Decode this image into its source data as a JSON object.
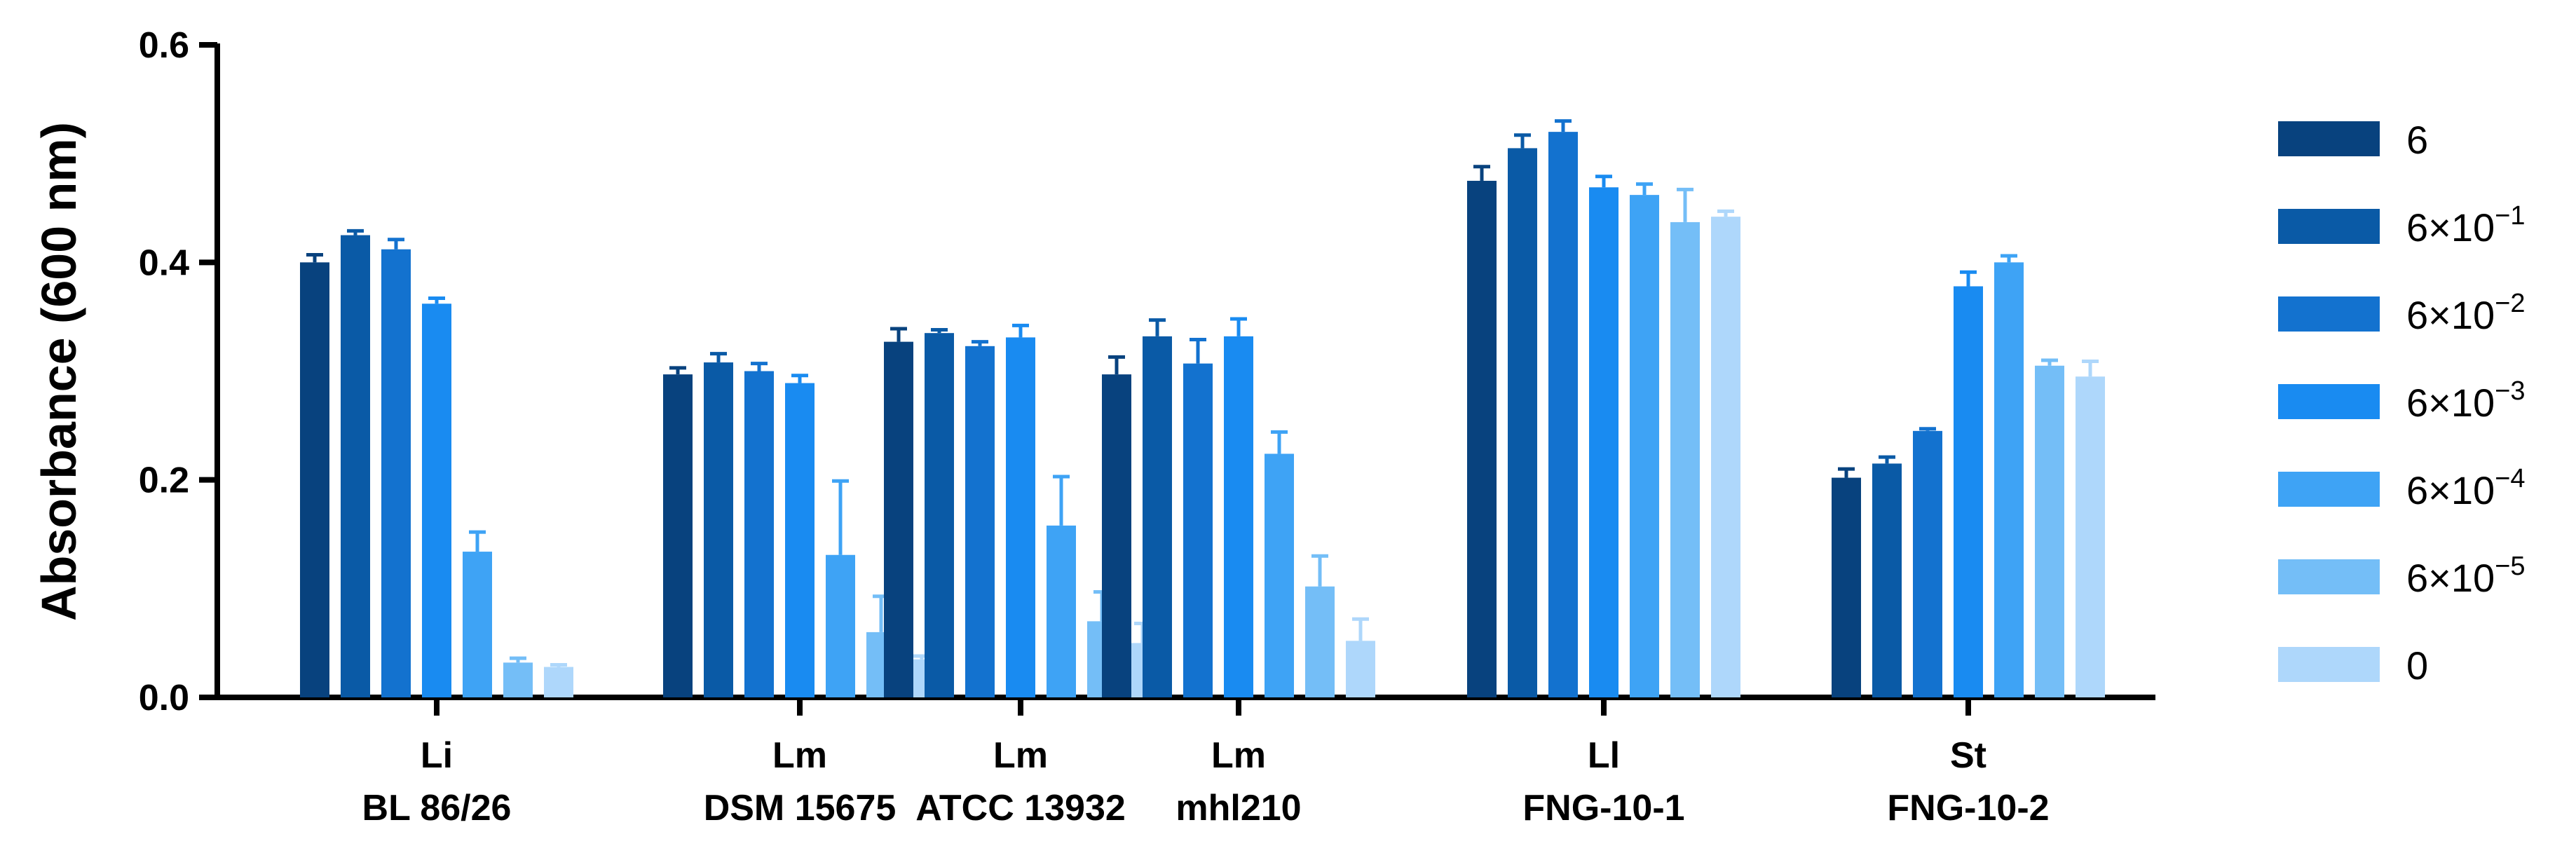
{
  "chart_data": {
    "type": "bar",
    "ylabel": "Absorbance (600 nm)",
    "ylim": [
      0,
      0.6
    ],
    "yticks": [
      "0.0",
      "0.2",
      "0.4",
      "0.6"
    ],
    "categories": [
      {
        "line1": "Li",
        "line2": "BL 86/26"
      },
      {
        "line1": "Lm",
        "line2": "DSM 15675"
      },
      {
        "line1": "Lm",
        "line2": "ATCC 13932"
      },
      {
        "line1": "Lm",
        "line2": "mhl210"
      },
      {
        "line1": "Ll",
        "line2": "FNG-10-1"
      },
      {
        "line1": "St",
        "line2": "FNG-10-2"
      }
    ],
    "series": [
      {
        "name": "6",
        "base": "6",
        "exp": "",
        "color": "#08427e",
        "values": [
          0.4,
          0.297,
          0.327,
          0.297,
          0.475,
          0.202
        ],
        "errors": [
          0.007,
          0.006,
          0.012,
          0.016,
          0.013,
          0.008
        ]
      },
      {
        "name": "6×10−1",
        "base": "6×10",
        "exp": "−1",
        "color": "#0a5aa6",
        "values": [
          0.425,
          0.308,
          0.335,
          0.332,
          0.505,
          0.215
        ],
        "errors": [
          0.004,
          0.008,
          0.003,
          0.015,
          0.012,
          0.006
        ]
      },
      {
        "name": "6×10−2",
        "base": "6×10",
        "exp": "−2",
        "color": "#1372cf",
        "values": [
          0.412,
          0.3,
          0.323,
          0.307,
          0.52,
          0.245
        ],
        "errors": [
          0.009,
          0.007,
          0.004,
          0.022,
          0.01,
          0.002
        ]
      },
      {
        "name": "6×10−3",
        "base": "6×10",
        "exp": "−3",
        "color": "#198bf1",
        "values": [
          0.362,
          0.289,
          0.331,
          0.332,
          0.469,
          0.378
        ],
        "errors": [
          0.005,
          0.007,
          0.011,
          0.016,
          0.01,
          0.013
        ]
      },
      {
        "name": "6×10−4",
        "base": "6×10",
        "exp": "−4",
        "color": "#3ea3f5",
        "values": [
          0.134,
          0.131,
          0.158,
          0.224,
          0.462,
          0.4
        ],
        "errors": [
          0.018,
          0.068,
          0.045,
          0.02,
          0.01,
          0.006
        ]
      },
      {
        "name": "6×10−5",
        "base": "6×10",
        "exp": "−5",
        "color": "#74bef7",
        "values": [
          0.032,
          0.06,
          0.07,
          0.102,
          0.437,
          0.305
        ],
        "errors": [
          0.004,
          0.033,
          0.027,
          0.028,
          0.03,
          0.005
        ]
      },
      {
        "name": "0",
        "base": "0",
        "exp": "",
        "color": "#aed7fb",
        "values": [
          0.028,
          0.035,
          0.05,
          0.052,
          0.442,
          0.295
        ],
        "errors": [
          0.002,
          0.003,
          0.018,
          0.02,
          0.005,
          0.014
        ]
      }
    ]
  }
}
